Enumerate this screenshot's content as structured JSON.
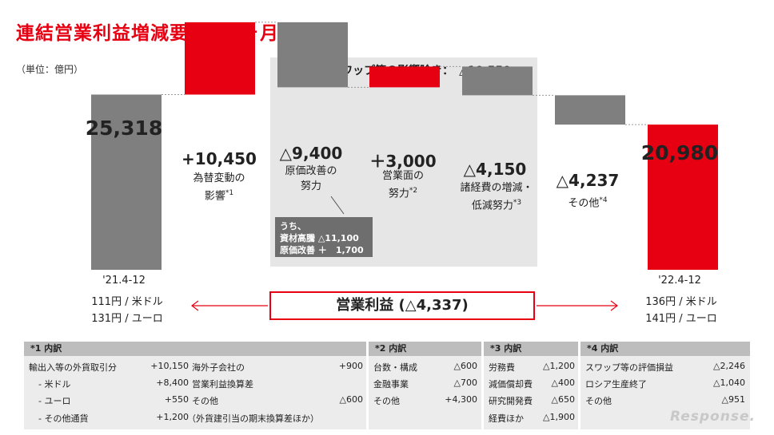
{
  "title": "連結営業利益増減要因（9ヶ月累計）",
  "unit": "（単位：億円）",
  "shaded_group": {
    "title": "為替・スワップ等の影響除き：　△10,550"
  },
  "chart_data": {
    "type": "waterfall",
    "title": "連結営業利益増減要因（9ヶ月累計）",
    "unit": "億円",
    "bars": [
      {
        "label": "'21.4-12",
        "value": 25318,
        "value_label": "25,318",
        "kind": "total",
        "color": "#7f7f7f"
      },
      {
        "label": "為替変動の影響",
        "note": "*1",
        "value": 10450,
        "value_label": "+10,450",
        "kind": "increase",
        "color": "#e60012"
      },
      {
        "label": "原価改善の努力",
        "value": -9400,
        "value_label": "△9,400",
        "kind": "decrease",
        "color": "#7f7f7f"
      },
      {
        "label": "営業面の努力",
        "note": "*2",
        "value": 3000,
        "value_label": "＋3,000",
        "kind": "increase",
        "color": "#e60012"
      },
      {
        "label": "諸経費の増減・低減努力",
        "note": "*3",
        "value": -4150,
        "value_label": "△4,150",
        "kind": "decrease",
        "color": "#7f7f7f"
      },
      {
        "label": "その他",
        "note": "*4",
        "value": -4237,
        "value_label": "△4,237",
        "kind": "decrease",
        "color": "#7f7f7f"
      },
      {
        "label": "'22.4-12",
        "value": 20980,
        "value_label": "20,980",
        "kind": "total",
        "color": "#e60012"
      }
    ]
  },
  "labels": {
    "b1_line1": "為替変動の",
    "b1_line2": "影響",
    "b1_note": "*1",
    "b2_line1": "原価改善の",
    "b2_line2": "努力",
    "b3_line1": "営業面の",
    "b3_line2": "努力",
    "b3_note": "*2",
    "b4_line1": "諸経費の増減・",
    "b4_line2": "低減努力",
    "b4_note": "*3",
    "b5_line1": "その他",
    "b5_note": "*4"
  },
  "inner_note": {
    "line1": "うち、",
    "line2_label": "資材高騰",
    "line2_value": "△11,100",
    "line3_label": "原価改善",
    "line3_value": "＋　1,700"
  },
  "periods": {
    "left": {
      "label": "'21.4-12",
      "usd": "111円 / 米ドル",
      "eur": "131円 / ユーロ"
    },
    "right": {
      "label": "'22.4-12",
      "usd": "136円 / 米ドル",
      "eur": "141円 / ユーロ"
    }
  },
  "operating_profit": "営業利益 (△4,337)",
  "breakdown": {
    "b1": {
      "head": "*1 内訳",
      "left": [
        {
          "label": "輸出入等の外貨取引分",
          "value": "+10,150"
        },
        {
          "label": "- 米ドル",
          "value": "+8,400"
        },
        {
          "label": "- ユーロ",
          "value": "+550"
        },
        {
          "label": "- その他通貨",
          "value": "+1,200"
        }
      ],
      "right": [
        {
          "label": "海外子会社の",
          "value": "+900"
        },
        {
          "label": "営業利益換算差",
          "value": ""
        },
        {
          "label": "その他",
          "value": "△600"
        },
        {
          "label": "（外貨建引当の期末換算差ほか）",
          "value": ""
        }
      ]
    },
    "b2": {
      "head": "*2 内訳",
      "rows": [
        {
          "label": "台数・構成",
          "value": "△600"
        },
        {
          "label": "金融事業",
          "value": "△700"
        },
        {
          "label": "その他",
          "value": "+4,300"
        }
      ]
    },
    "b3": {
      "head": "*3 内訳",
      "rows": [
        {
          "label": "労務費",
          "value": "△1,200"
        },
        {
          "label": "減価償却費",
          "value": "△400"
        },
        {
          "label": "研究開発費",
          "value": "△650"
        },
        {
          "label": "経費ほか",
          "value": "△1,900"
        }
      ]
    },
    "b4": {
      "head": "*4 内訳",
      "rows": [
        {
          "label": "スワップ等の評価損益",
          "value": "△2,246"
        },
        {
          "label": "ロシア生産終了",
          "value": "△1,040"
        },
        {
          "label": "その他",
          "value": "△951"
        }
      ]
    }
  },
  "watermark": "Response."
}
